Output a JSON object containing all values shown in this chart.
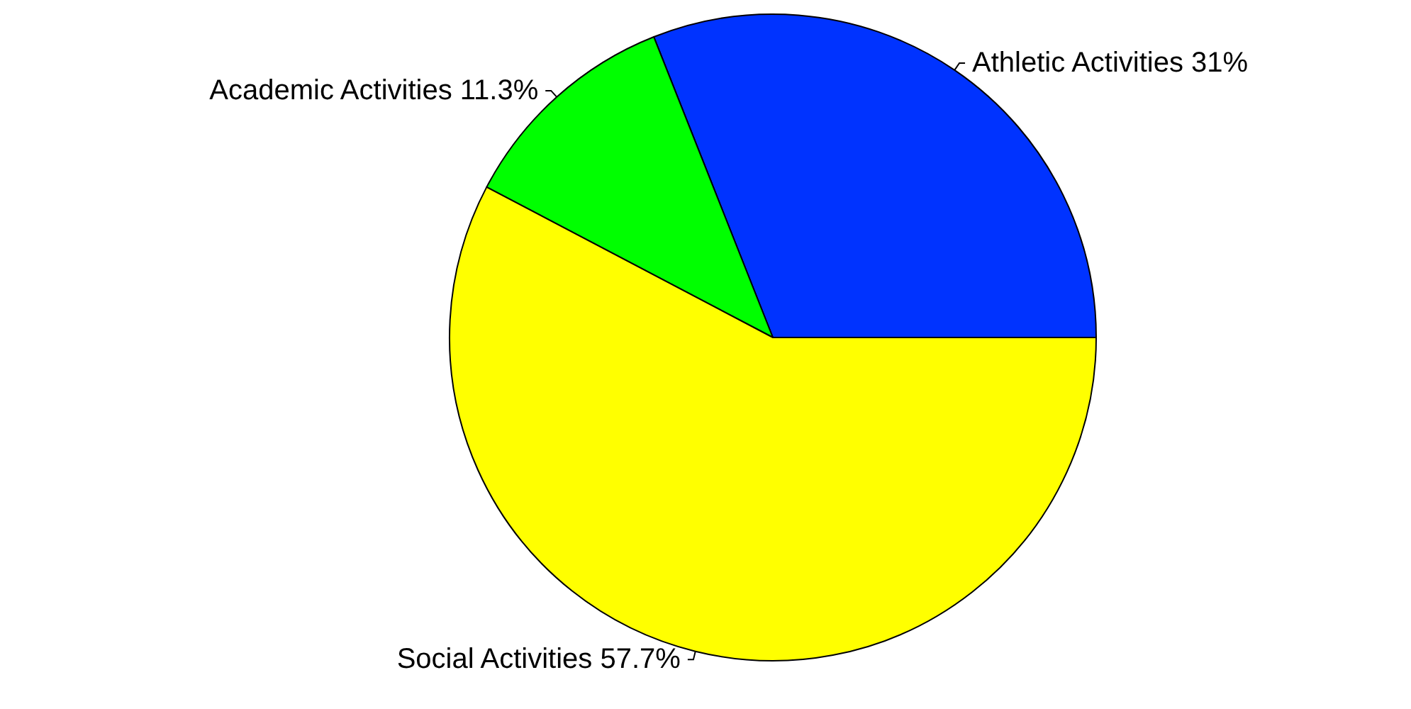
{
  "chart_data": {
    "type": "pie",
    "categories": [
      "Athletic Activities",
      "Academic Activities",
      "Social Activities"
    ],
    "values": [
      31,
      11.3,
      57.7
    ],
    "colors": [
      "#0033ff",
      "#00ff00",
      "#ffff00"
    ],
    "value_labels": [
      "31%",
      "11.3%",
      "57.7%"
    ],
    "legend": false
  }
}
